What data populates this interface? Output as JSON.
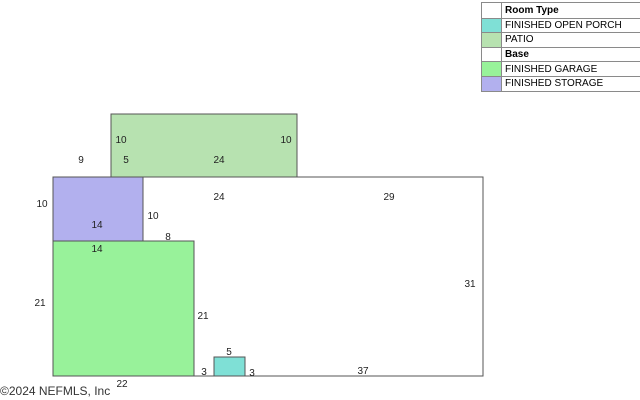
{
  "legend": {
    "rows": [
      {
        "label": "Room Type",
        "heading": true,
        "color": "#ffffff"
      },
      {
        "label": "FINISHED OPEN PORCH",
        "heading": false,
        "color": "#7fe0d6"
      },
      {
        "label": "PATIO",
        "heading": false,
        "color": "#b7e2b0"
      },
      {
        "label": "Base",
        "heading": true,
        "color": "#ffffff"
      },
      {
        "label": "FINISHED GARAGE",
        "heading": false,
        "color": "#98f29a"
      },
      {
        "label": "FINISHED STORAGE",
        "heading": false,
        "color": "#b2b0ee"
      }
    ]
  },
  "rooms": {
    "patio": {
      "color": "#b7e2b0",
      "dims": [
        "10",
        "10",
        "5",
        "24"
      ]
    },
    "storage": {
      "color": "#b2b0ee",
      "dims": [
        "10",
        "14",
        "10",
        "14"
      ]
    },
    "garage": {
      "color": "#98f29a",
      "dims": [
        "21",
        "21",
        "22"
      ]
    },
    "porch": {
      "color": "#7fe0d6",
      "dims": [
        "5",
        "3",
        "3"
      ]
    },
    "base": {
      "color": "#ffffff",
      "dims": [
        "9",
        "24",
        "29",
        "8",
        "31",
        "37"
      ]
    }
  },
  "copyright": "©2024 NEFMLS, Inc"
}
